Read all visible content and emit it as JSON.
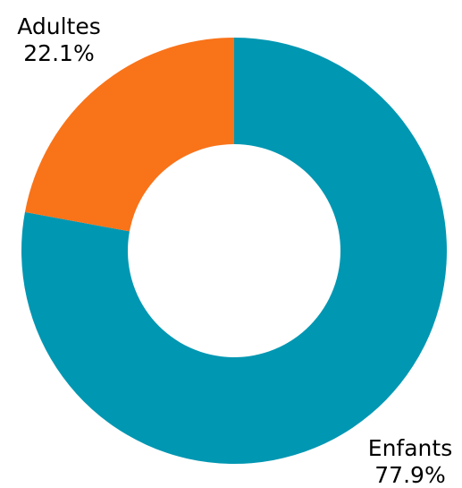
{
  "chart_data": {
    "type": "pie",
    "donut": true,
    "title": "",
    "start_angle_deg": 0,
    "direction": "clockwise",
    "slices": [
      {
        "label": "Enfants",
        "value": 77.9,
        "percent_label": "77.9%",
        "color": "#0097b2"
      },
      {
        "label": "Adultes",
        "value": 22.1,
        "percent_label": "22.1%",
        "color": "#f97319"
      }
    ],
    "legend": "none"
  }
}
